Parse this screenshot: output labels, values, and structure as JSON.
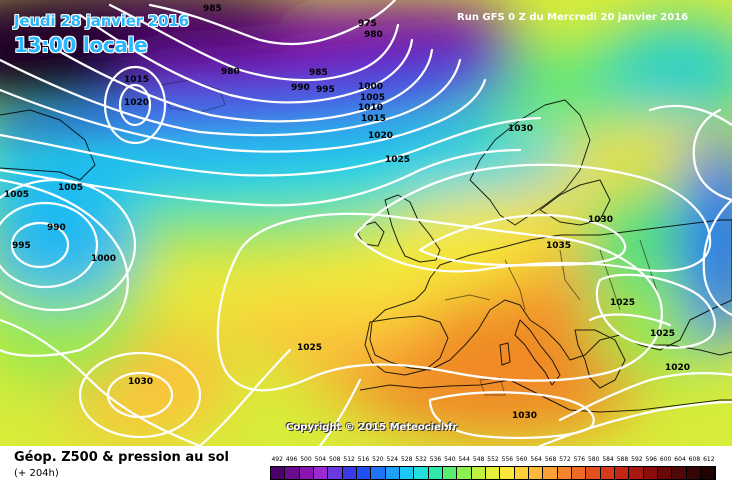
{
  "header": {
    "date": "Jeudi 28 janvier 2016",
    "time": "13:00 locale",
    "run": "Run GFS 0 Z du Mercredi 20 janvier 2016"
  },
  "copyright": "Copyright © 2015 Meteociel.fr",
  "legend": {
    "title": "Géop. Z500 & pression au sol",
    "subtitle": "(+ 204h)",
    "scale_values": [
      "492",
      "496",
      "500",
      "504",
      "508",
      "512",
      "516",
      "520",
      "524",
      "528",
      "532",
      "536",
      "540",
      "544",
      "548",
      "552",
      "556",
      "560",
      "564",
      "568",
      "572",
      "576",
      "580",
      "584",
      "588",
      "592",
      "596",
      "600",
      "604",
      "608",
      "612"
    ],
    "scale_colors": [
      "#4b006b",
      "#6a0a8c",
      "#8a14ad",
      "#9a2ad0",
      "#6a3ae0",
      "#3a3ae8",
      "#1f4ff0",
      "#1f73f7",
      "#1ea0fa",
      "#1ec8f5",
      "#20e0d8",
      "#30e8a8",
      "#5aee70",
      "#8cf050",
      "#bef040",
      "#e6f03a",
      "#fbe83a",
      "#fdd03a",
      "#fdb83a",
      "#fba033",
      "#f6842c",
      "#ee6a26",
      "#e35020",
      "#d53a1a",
      "#c42616",
      "#a81810",
      "#8c0c0c",
      "#6a0808",
      "#4e0808",
      "#360606",
      "#200404"
    ]
  },
  "isobars": [
    {
      "label": "985",
      "id": "isobar-985-a"
    },
    {
      "label": "975",
      "id": "isobar-975"
    },
    {
      "label": "980",
      "id": "isobar-980-a"
    },
    {
      "label": "980",
      "id": "isobar-980-b"
    },
    {
      "label": "985",
      "id": "isobar-985-b"
    },
    {
      "label": "990",
      "id": "isobar-990-a"
    },
    {
      "label": "995",
      "id": "isobar-995-a"
    },
    {
      "label": "1000",
      "id": "isobar-1000-a"
    },
    {
      "label": "1005",
      "id": "isobar-1005-a"
    },
    {
      "label": "1010",
      "id": "isobar-1010"
    },
    {
      "label": "1015",
      "id": "isobar-1015-a"
    },
    {
      "label": "1015",
      "id": "isobar-1015-b"
    },
    {
      "label": "1020",
      "id": "isobar-1020-a"
    },
    {
      "label": "1020",
      "id": "isobar-1020-b"
    },
    {
      "label": "1025",
      "id": "isobar-1025-a"
    },
    {
      "label": "1030",
      "id": "isobar-1030-a"
    },
    {
      "label": "1005",
      "id": "isobar-1005-b"
    },
    {
      "label": "1005",
      "id": "isobar-1005-c"
    },
    {
      "label": "990",
      "id": "isobar-990-b"
    },
    {
      "label": "995",
      "id": "isobar-995-b"
    },
    {
      "label": "1000",
      "id": "isobar-1000-b"
    },
    {
      "label": "1030",
      "id": "isobar-1030-b"
    },
    {
      "label": "1035",
      "id": "isobar-1035"
    },
    {
      "label": "1025",
      "id": "isobar-1025-b"
    },
    {
      "label": "1025",
      "id": "isobar-1025-c"
    },
    {
      "label": "1025",
      "id": "isobar-1025-d"
    },
    {
      "label": "1020",
      "id": "isobar-1020-c"
    },
    {
      "label": "1030",
      "id": "isobar-1030-c"
    },
    {
      "label": "1030",
      "id": "isobar-1030-d"
    }
  ]
}
